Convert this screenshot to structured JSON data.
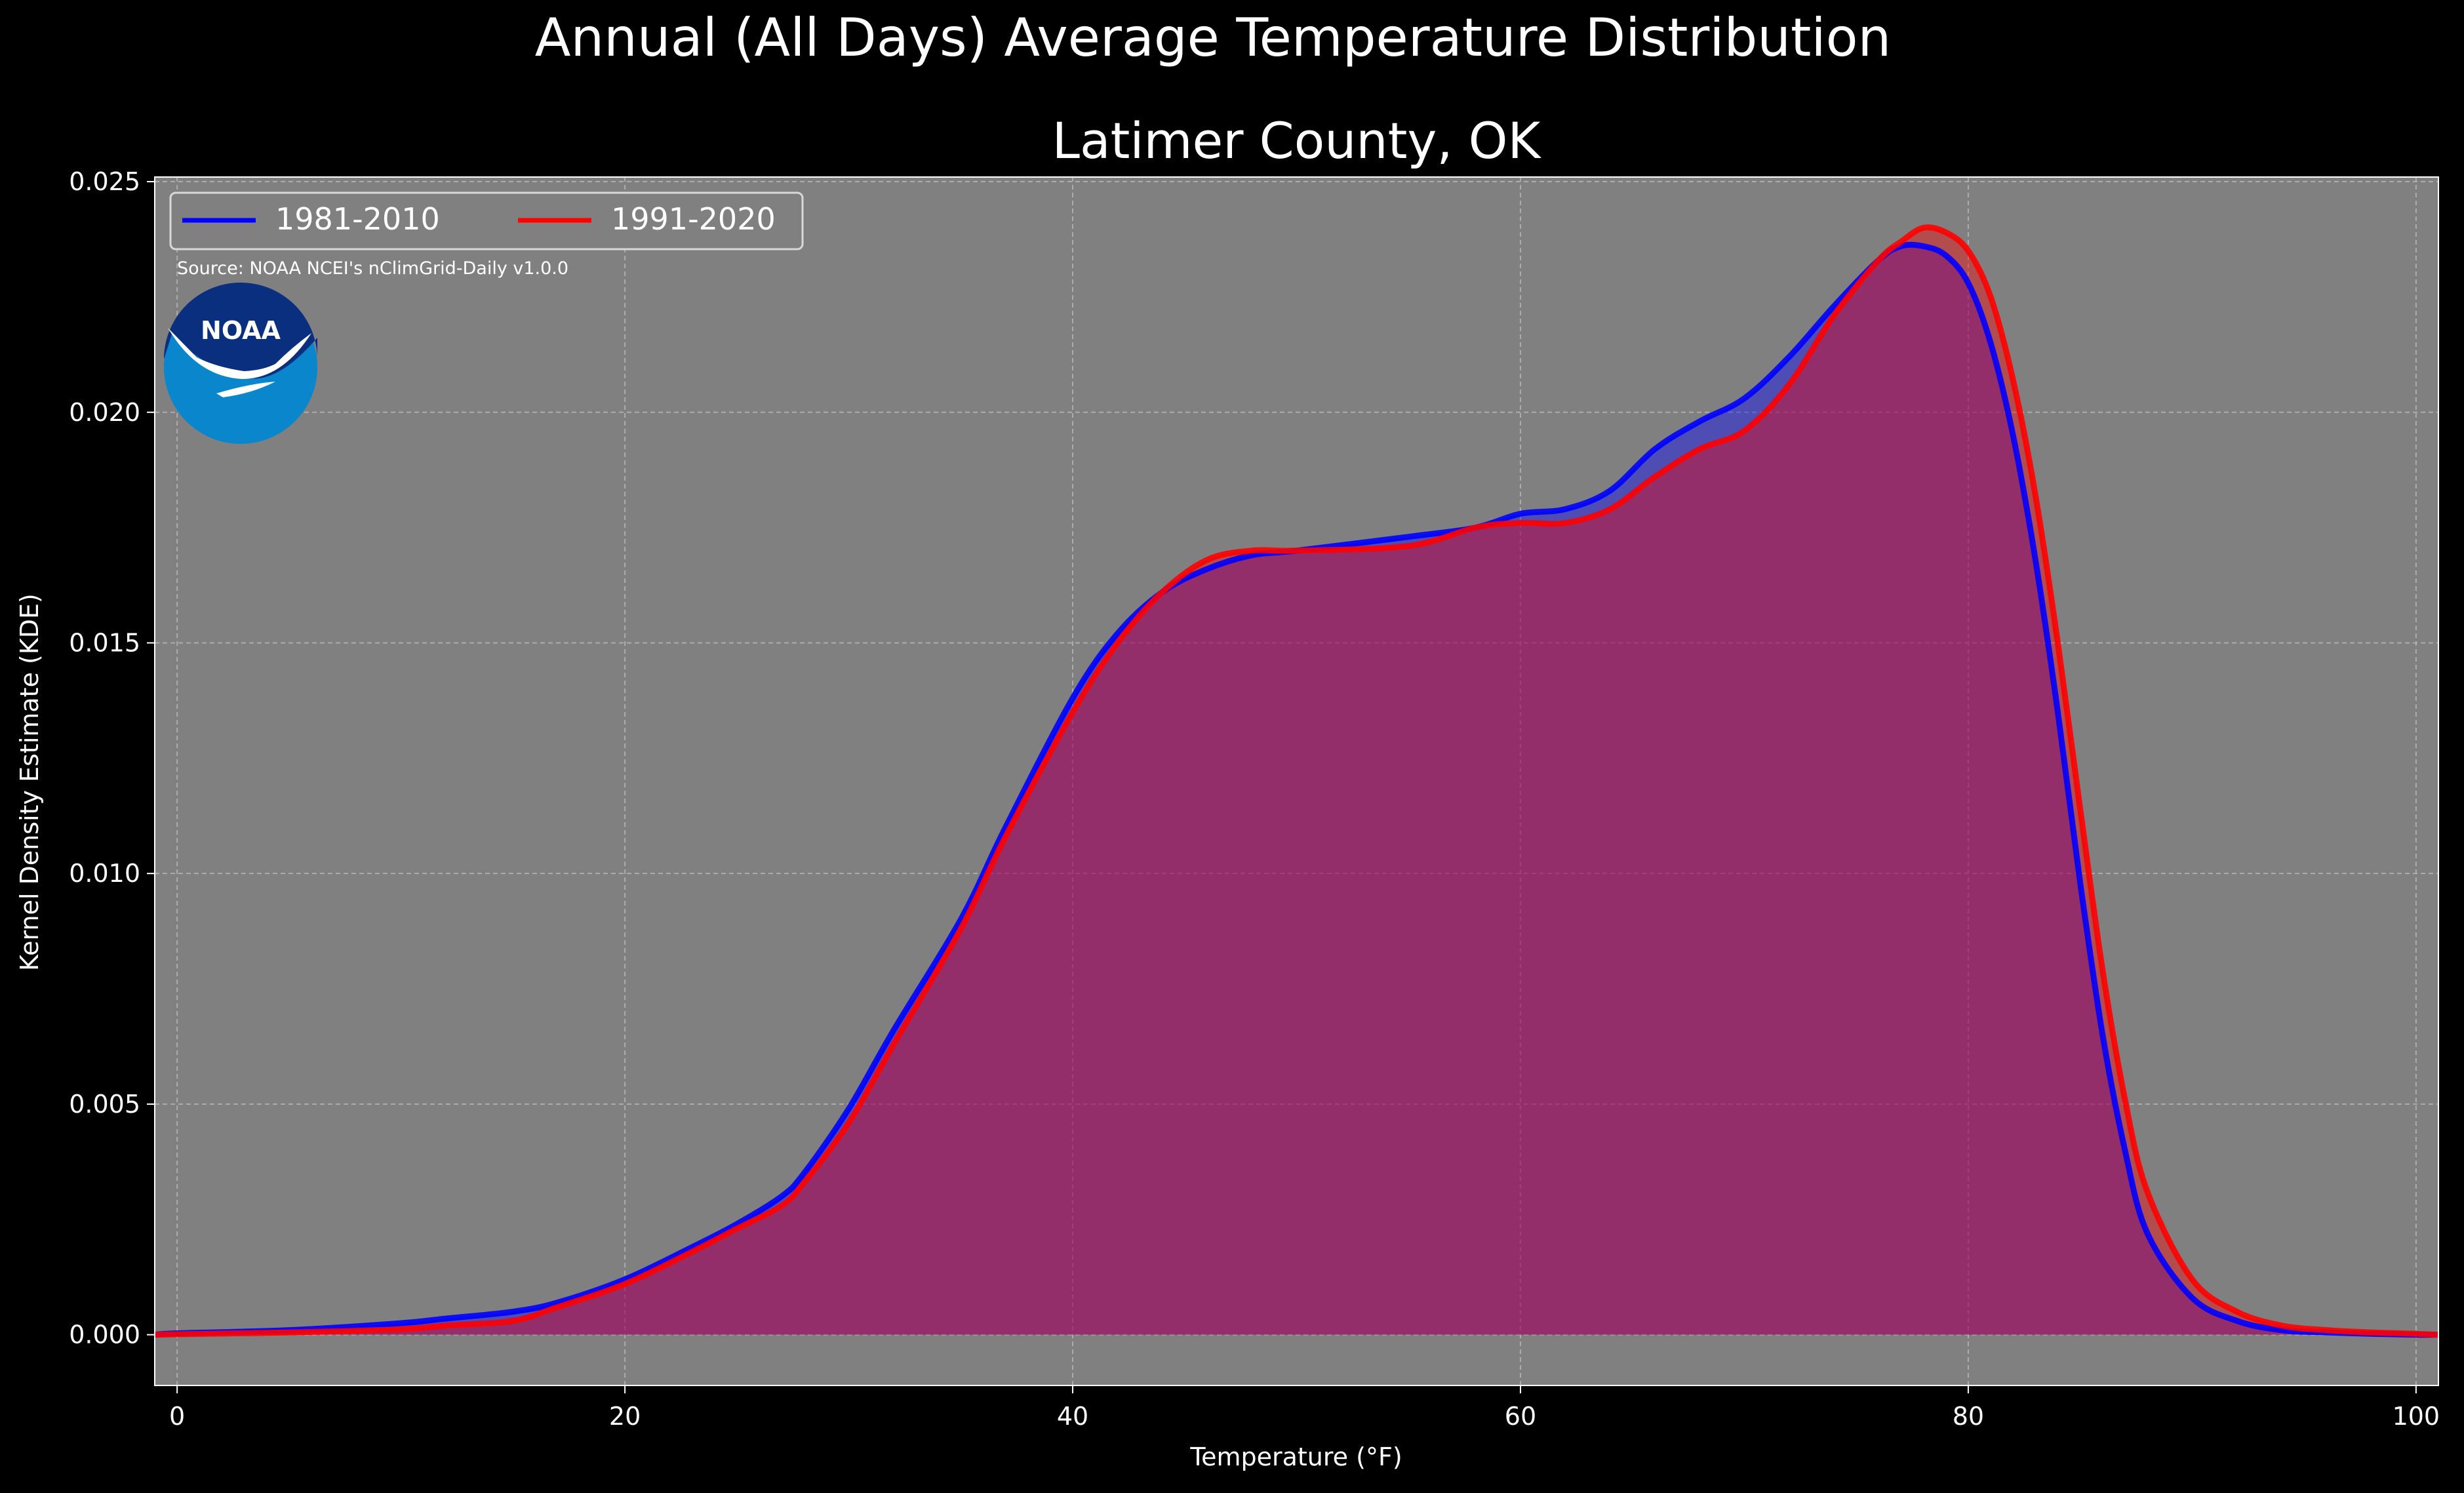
{
  "chart_data": {
    "type": "area",
    "title": "Annual (All Days) Average Temperature Distribution",
    "subtitle": "Latimer County, OK",
    "xlabel": "Temperature (°F)",
    "ylabel": "Kernel Density Estimate (KDE)",
    "xlim": [
      -1,
      101
    ],
    "ylim": [
      -0.0011,
      0.0251
    ],
    "x_ticks": [
      0,
      20,
      40,
      60,
      80,
      100
    ],
    "y_ticks": [
      0.0,
      0.005,
      0.01,
      0.015,
      0.02,
      0.025
    ],
    "x_tick_labels": [
      "0",
      "20",
      "40",
      "60",
      "80",
      "100"
    ],
    "y_tick_labels": [
      "0.000",
      "0.005",
      "0.010",
      "0.015",
      "0.020",
      "0.025"
    ],
    "grid": true,
    "legend_position": "top-left",
    "source_note": "Source: NOAA NCEI's nClimGrid-Daily v1.0.0",
    "logo_text": "NOAA",
    "series": [
      {
        "name": "1981-2010",
        "color": "#0000ff",
        "x": [
          -1,
          0,
          5,
          10,
          12,
          15,
          17,
          20,
          23,
          25,
          27,
          28,
          30,
          32,
          35,
          37,
          40,
          42,
          44,
          46,
          48,
          50,
          55,
          58,
          60,
          62,
          64,
          66,
          68,
          70,
          72,
          74,
          76,
          77,
          78,
          79,
          80,
          81,
          82,
          83,
          84,
          85,
          86,
          87,
          88,
          90,
          92,
          94,
          96,
          98,
          100,
          101
        ],
        "y": [
          0.0,
          3e-05,
          0.0001,
          0.00025,
          0.00035,
          0.0005,
          0.0007,
          0.0012,
          0.0019,
          0.0024,
          0.003,
          0.0035,
          0.0049,
          0.0066,
          0.009,
          0.011,
          0.0138,
          0.0152,
          0.0161,
          0.0166,
          0.0169,
          0.017,
          0.0173,
          0.0175,
          0.0178,
          0.0179,
          0.0183,
          0.0192,
          0.0198,
          0.0203,
          0.0212,
          0.0223,
          0.0233,
          0.0236,
          0.0236,
          0.0234,
          0.0228,
          0.0215,
          0.0195,
          0.0168,
          0.0135,
          0.0098,
          0.0065,
          0.004,
          0.0022,
          0.0008,
          0.0003,
          0.0001,
          5e-05,
          2e-05,
          0.0,
          0.0
        ]
      },
      {
        "name": "1991-2020",
        "color": "#ff0000",
        "x": [
          -1,
          0,
          5,
          10,
          12,
          15,
          17,
          20,
          23,
          25,
          27,
          28,
          30,
          32,
          35,
          37,
          40,
          42,
          44,
          46,
          48,
          50,
          55,
          58,
          60,
          62,
          64,
          66,
          68,
          70,
          72,
          74,
          76,
          77,
          78,
          79,
          80,
          81,
          82,
          83,
          84,
          85,
          86,
          87,
          88,
          90,
          92,
          94,
          96,
          98,
          100,
          101
        ],
        "y": [
          0.0,
          1e-05,
          5e-05,
          0.00012,
          0.0002,
          0.0003,
          0.0006,
          0.0011,
          0.0018,
          0.0023,
          0.0028,
          0.0033,
          0.0046,
          0.0063,
          0.0088,
          0.0108,
          0.0135,
          0.015,
          0.0161,
          0.0168,
          0.017,
          0.017,
          0.0171,
          0.0175,
          0.0176,
          0.0176,
          0.0179,
          0.0186,
          0.0192,
          0.0196,
          0.0206,
          0.0221,
          0.0233,
          0.0237,
          0.024,
          0.0239,
          0.0235,
          0.0225,
          0.0207,
          0.0182,
          0.015,
          0.0114,
          0.0079,
          0.0051,
          0.0031,
          0.0012,
          0.0005,
          0.0002,
          0.0001,
          5e-05,
          2e-05,
          0.0
        ]
      }
    ]
  }
}
